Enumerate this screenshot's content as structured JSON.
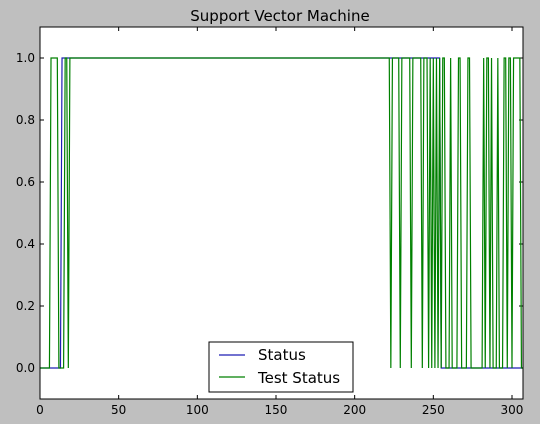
{
  "chart_data": {
    "type": "line",
    "title": "Support Vector Machine",
    "xlabel": "",
    "ylabel": "",
    "xlim": [
      0,
      307
    ],
    "ylim": [
      -0.1,
      1.1
    ],
    "x_ticks": [
      "0",
      "50",
      "100",
      "150",
      "200",
      "250",
      "300"
    ],
    "y_ticks": [
      "0.0",
      "0.2",
      "0.4",
      "0.6",
      "0.8",
      "1.0"
    ],
    "grid": false,
    "legend_position": "lower-center",
    "series": [
      {
        "name": "Status",
        "color": "#1f1fb4",
        "points": [
          [
            0,
            0
          ],
          [
            13,
            0
          ],
          [
            14,
            1
          ],
          [
            254,
            1
          ],
          [
            255,
            0
          ],
          [
            307,
            0
          ]
        ]
      },
      {
        "name": "Test Status",
        "color": "#008000",
        "points": [
          [
            0,
            0
          ],
          [
            6,
            0
          ],
          [
            7,
            1
          ],
          [
            11,
            1
          ],
          [
            12,
            0
          ],
          [
            15,
            0
          ],
          [
            16,
            1
          ],
          [
            17,
            1
          ],
          [
            18,
            0
          ],
          [
            19,
            1
          ],
          [
            222,
            1
          ],
          [
            223,
            0
          ],
          [
            224,
            1
          ],
          [
            228,
            1
          ],
          [
            229,
            0
          ],
          [
            230,
            1
          ],
          [
            235,
            1
          ],
          [
            236,
            0
          ],
          [
            237,
            1
          ],
          [
            242,
            1
          ],
          [
            243,
            0
          ],
          [
            244,
            1
          ],
          [
            246,
            1
          ],
          [
            247,
            0
          ],
          [
            248,
            1
          ],
          [
            249,
            0
          ],
          [
            250,
            1
          ],
          [
            251,
            0
          ],
          [
            252,
            1
          ],
          [
            253,
            0
          ],
          [
            254,
            1
          ],
          [
            255,
            0
          ],
          [
            256,
            1
          ],
          [
            257,
            1
          ],
          [
            258,
            0
          ],
          [
            260,
            0
          ],
          [
            261,
            1
          ],
          [
            262,
            0
          ],
          [
            265,
            0
          ],
          [
            266,
            1
          ],
          [
            267,
            1
          ],
          [
            268,
            0
          ],
          [
            271,
            0
          ],
          [
            272,
            1
          ],
          [
            273,
            1
          ],
          [
            274,
            0
          ],
          [
            276,
            0
          ],
          [
            277,
            0
          ],
          [
            281,
            0
          ],
          [
            282,
            1
          ],
          [
            283,
            0
          ],
          [
            284,
            1
          ],
          [
            285,
            1
          ],
          [
            286,
            0
          ],
          [
            287,
            1
          ],
          [
            288,
            0
          ],
          [
            290,
            0
          ],
          [
            291,
            1
          ],
          [
            292,
            0
          ],
          [
            294,
            0
          ],
          [
            295,
            1
          ],
          [
            296,
            1
          ],
          [
            297,
            0
          ],
          [
            298,
            1
          ],
          [
            299,
            1
          ],
          [
            300,
            0
          ],
          [
            301,
            1
          ],
          [
            305,
            1
          ],
          [
            306,
            0
          ],
          [
            307,
            0
          ]
        ]
      }
    ]
  },
  "legend": {
    "items": [
      "Status",
      "Test Status"
    ]
  }
}
